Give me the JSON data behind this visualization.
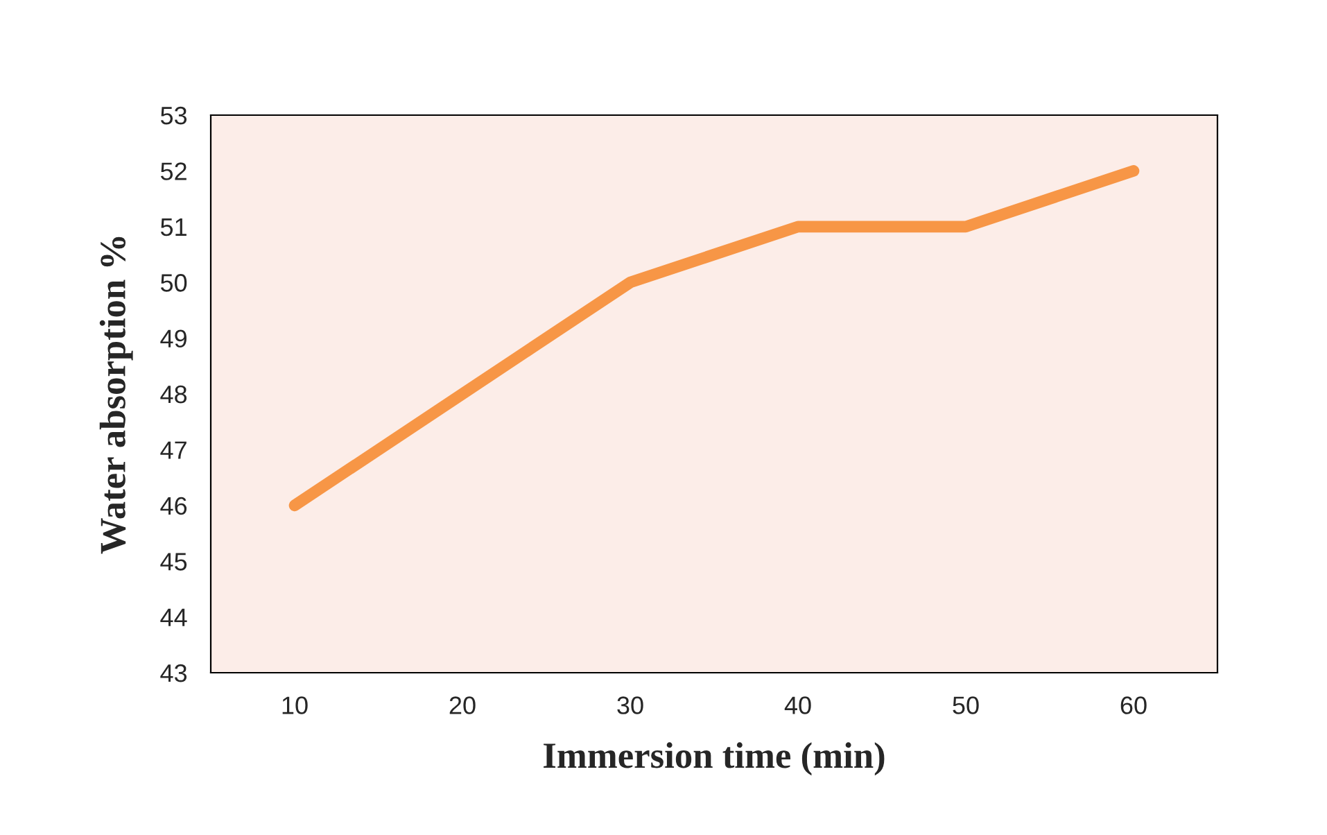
{
  "chart_data": {
    "type": "line",
    "xlabel": "Immersion time (min)",
    "ylabel": "Water absorption %",
    "categories": [
      "10",
      "20",
      "30",
      "40",
      "50",
      "60"
    ],
    "series": [
      {
        "color": "#f79646",
        "values": [
          46,
          48,
          50,
          51,
          51,
          52
        ]
      }
    ],
    "ylim": [
      43,
      53
    ],
    "yticks": [
      43,
      44,
      45,
      46,
      47,
      48,
      49,
      50,
      51,
      52,
      53
    ],
    "grid": false,
    "legend": false,
    "marker": "none",
    "line_style": "solid"
  }
}
